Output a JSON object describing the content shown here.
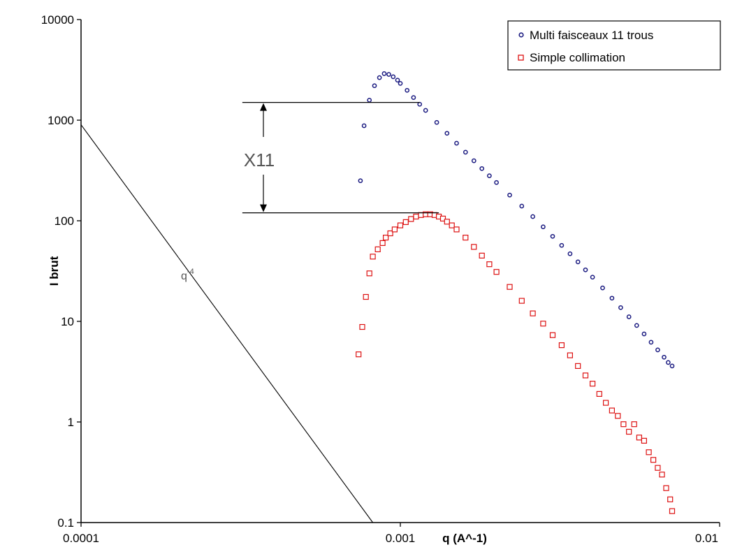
{
  "chart_data": {
    "type": "scatter",
    "title": "",
    "xlabel": "q (A^-1)",
    "ylabel": "I brut",
    "xscale": "log",
    "yscale": "log",
    "xlim": [
      0.0001,
      0.01
    ],
    "ylim": [
      0.1,
      10000
    ],
    "x_tick_labels": [
      "0.0001",
      "0.001",
      "0.01"
    ],
    "y_tick_labels": [
      "0.1",
      "1",
      "10",
      "100",
      "1000",
      "10000"
    ],
    "grid": false,
    "legend_position": "top-right",
    "colors": {
      "multi": "#1a1a80",
      "simple": "#dd1111"
    },
    "series": [
      {
        "name": "Multi faisceaux 11 trous",
        "marker": "circle",
        "x": [
          0.00075,
          0.00077,
          0.0008,
          0.00083,
          0.00086,
          0.00089,
          0.00092,
          0.00095,
          0.00098,
          0.001,
          0.00105,
          0.0011,
          0.00115,
          0.0012,
          0.0013,
          0.0014,
          0.0015,
          0.0016,
          0.0017,
          0.0018,
          0.0019,
          0.002,
          0.0022,
          0.0024,
          0.0026,
          0.0028,
          0.003,
          0.0032,
          0.0034,
          0.0036,
          0.0038,
          0.004,
          0.0043,
          0.0046,
          0.0049,
          0.0052,
          0.0055,
          0.0058,
          0.0061,
          0.0064,
          0.0067,
          0.0069,
          0.0071
        ],
        "y": [
          250,
          880,
          1580,
          2200,
          2650,
          2900,
          2850,
          2700,
          2500,
          2320,
          1980,
          1680,
          1440,
          1250,
          950,
          740,
          590,
          480,
          395,
          330,
          280,
          240,
          180,
          140,
          110,
          87,
          70,
          57,
          47,
          39,
          32.5,
          27.5,
          21.5,
          17,
          13.7,
          11.1,
          9.1,
          7.5,
          6.2,
          5.2,
          4.4,
          3.9,
          3.6
        ]
      },
      {
        "name": "Simple collimation",
        "marker": "square",
        "x": [
          0.00074,
          0.00076,
          0.00078,
          0.0008,
          0.00082,
          0.00085,
          0.00088,
          0.0009,
          0.00093,
          0.00096,
          0.001,
          0.00104,
          0.00108,
          0.00112,
          0.00116,
          0.0012,
          0.00124,
          0.00128,
          0.00132,
          0.00136,
          0.0014,
          0.00145,
          0.0015,
          0.0016,
          0.0017,
          0.0018,
          0.0019,
          0.002,
          0.0022,
          0.0024,
          0.0026,
          0.0028,
          0.003,
          0.0032,
          0.0034,
          0.0036,
          0.0038,
          0.004,
          0.0042,
          0.0044,
          0.0046,
          0.0048,
          0.005,
          0.0052,
          0.0054,
          0.0056,
          0.0058,
          0.006,
          0.0062,
          0.0064,
          0.0066,
          0.0068,
          0.007,
          0.0071
        ],
        "y": [
          4.7,
          8.8,
          17.5,
          30,
          44,
          52,
          60,
          68,
          75,
          82,
          90,
          97,
          104,
          110,
          114,
          116,
          116,
          114,
          110,
          105,
          98,
          90,
          82,
          68,
          55,
          45,
          37,
          31,
          22,
          16,
          12,
          9.5,
          7.3,
          5.8,
          4.6,
          3.6,
          2.9,
          2.4,
          1.9,
          1.55,
          1.3,
          1.15,
          0.95,
          0.8,
          0.95,
          0.7,
          0.65,
          0.5,
          0.42,
          0.35,
          0.3,
          0.22,
          0.17,
          0.13
        ]
      },
      {
        "name": "q-4",
        "type": "line",
        "x": [
          0.0001,
          0.00082
        ],
        "y": [
          900,
          0.1
        ]
      }
    ],
    "annotations": {
      "factor_label": "X11",
      "factor_y_top": 1500,
      "factor_y_bottom": 120,
      "factor_line_x_start": 0.00032,
      "factor_top_line_x_end": 0.00115,
      "factor_bottom_line_x_end": 0.00132,
      "q_label_base": "q",
      "q_label_exponent": "-4"
    }
  }
}
